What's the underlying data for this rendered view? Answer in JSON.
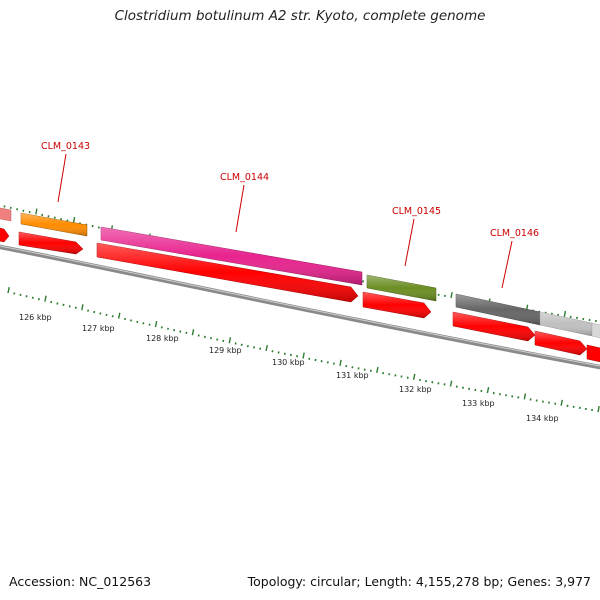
{
  "title": "Clostridium botulinum A2 str. Kyoto, complete genome",
  "footer": {
    "accession": "Accession: NC_012563",
    "summary": "Topology: circular; Length: 4,155,278 bp; Genes: 3,977"
  },
  "genes": [
    {
      "name": "CLM_0143",
      "color": "#ff8c00"
    },
    {
      "name": "CLM_0144",
      "color": "#e8238e"
    },
    {
      "name": "CLM_0145",
      "color": "#6b8e23"
    },
    {
      "name": "CLM_0146",
      "color": "#666666"
    }
  ],
  "scale_ticks": [
    "126 kbp",
    "127 kbp",
    "128 kbp",
    "129 kbp",
    "130 kbp",
    "131 kbp",
    "132 kbp",
    "133 kbp",
    "134 kbp"
  ],
  "colors": {
    "gene_label": "#cc0000",
    "strand_arrow": "#ff0000",
    "backbone": "#888888",
    "tick": "#2e7d32",
    "partial_pink": "#f08080",
    "partial_lightgray": "#c0c0c0"
  }
}
